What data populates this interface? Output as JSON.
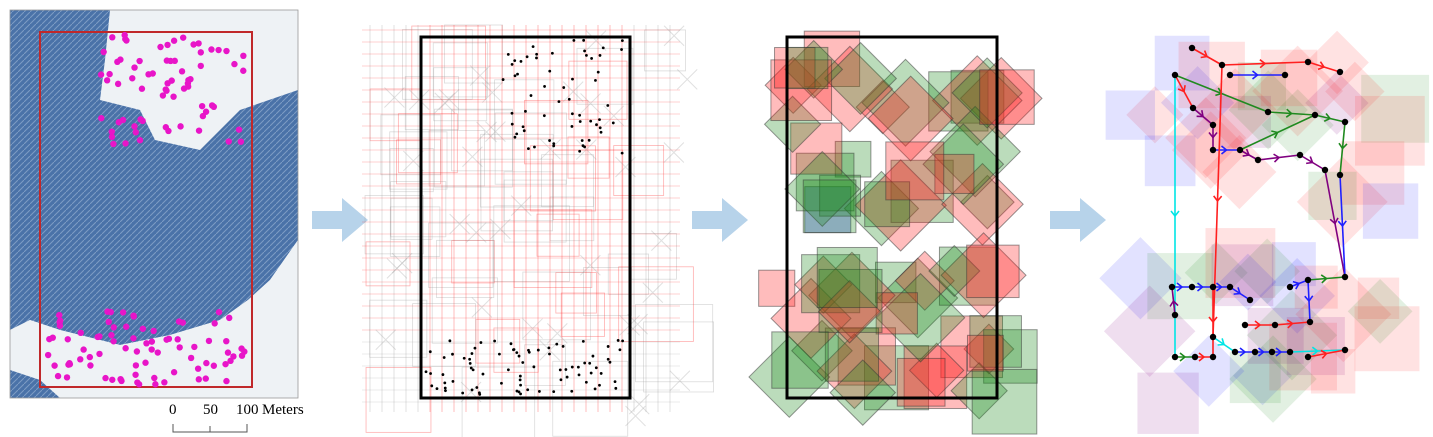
{
  "scale_bar": {
    "ticks": [
      "0",
      "50",
      "100"
    ],
    "unit": "Meters"
  },
  "colors": {
    "water": "#4a72a8",
    "snow": "#f2f5f7",
    "boundary": "#c0282a",
    "sample_points": "#e815c8",
    "arrow": "#b7d3ea",
    "grid_red": "#ff2020",
    "grid_gray": "#999999",
    "green": "#1f8a1f",
    "blue": "#2020ff",
    "purple": "#800080",
    "cyan": "#00e5e5"
  },
  "panels": [
    "site-map",
    "candidate-grid",
    "selected-squares",
    "path-graph"
  ]
}
